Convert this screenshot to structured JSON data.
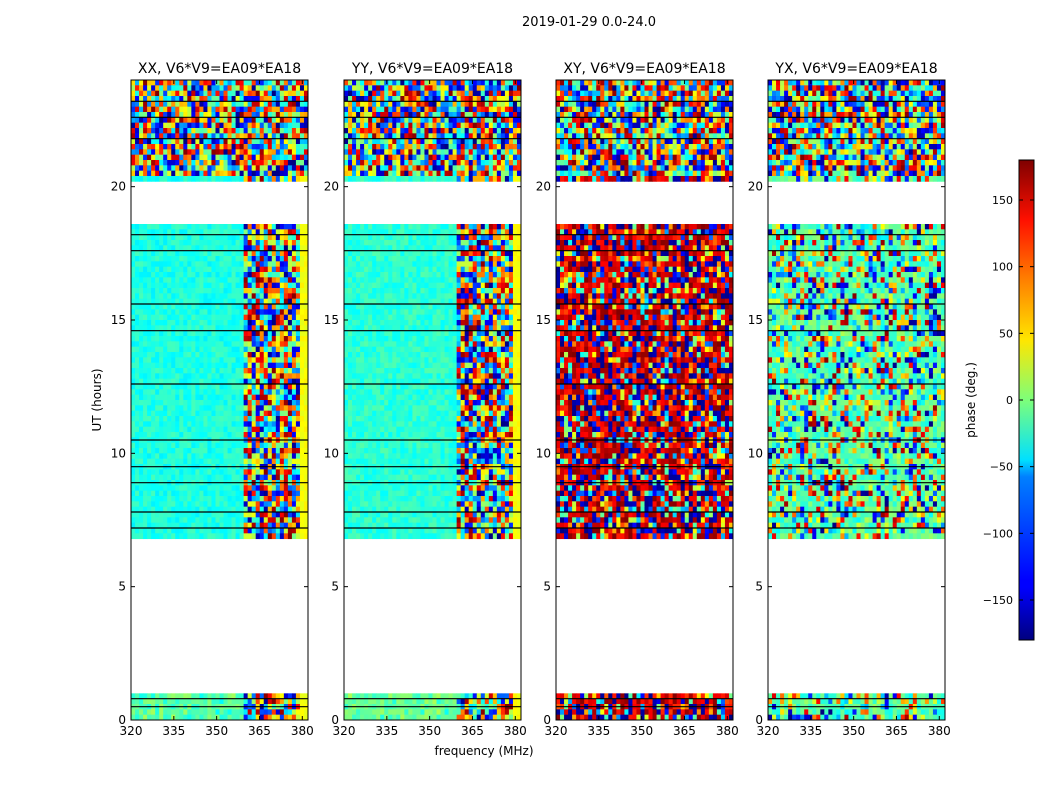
{
  "figure": {
    "suptitle": "2019-01-29 0.0-24.0",
    "colorbar_label": "phase (deg.)",
    "shared_ylabel": "UT (hours)",
    "shared_xlabel": "frequency (MHz)"
  },
  "chart_data": {
    "type": "heatmap",
    "description_scale": "jet",
    "x_range": [
      320,
      382
    ],
    "y_range": [
      0,
      24
    ],
    "x_ticks": [
      320,
      335,
      350,
      365,
      380
    ],
    "y_ticks": [
      0,
      5,
      10,
      15,
      20
    ],
    "color_range": [
      -180,
      180
    ],
    "color_ticks": [
      -150,
      -100,
      -50,
      0,
      50,
      100,
      150
    ],
    "data_gaps_ut": [
      [
        1.1,
        6.8
      ],
      [
        18.6,
        20.3
      ]
    ],
    "panels": [
      {
        "title": "XX, V6*V9=EA09*EA18",
        "pol": "XX",
        "dominant_phase_deg": -20
      },
      {
        "title": "YY, V6*V9=EA09*EA18",
        "pol": "YY",
        "dominant_phase_deg": -15
      },
      {
        "title": "XY, V6*V9=EA09*EA18",
        "pol": "XY",
        "dominant_phase_deg": 150
      },
      {
        "title": "YX, V6*V9=EA09*EA18",
        "pol": "YX",
        "dominant_phase_deg": -30
      }
    ]
  }
}
